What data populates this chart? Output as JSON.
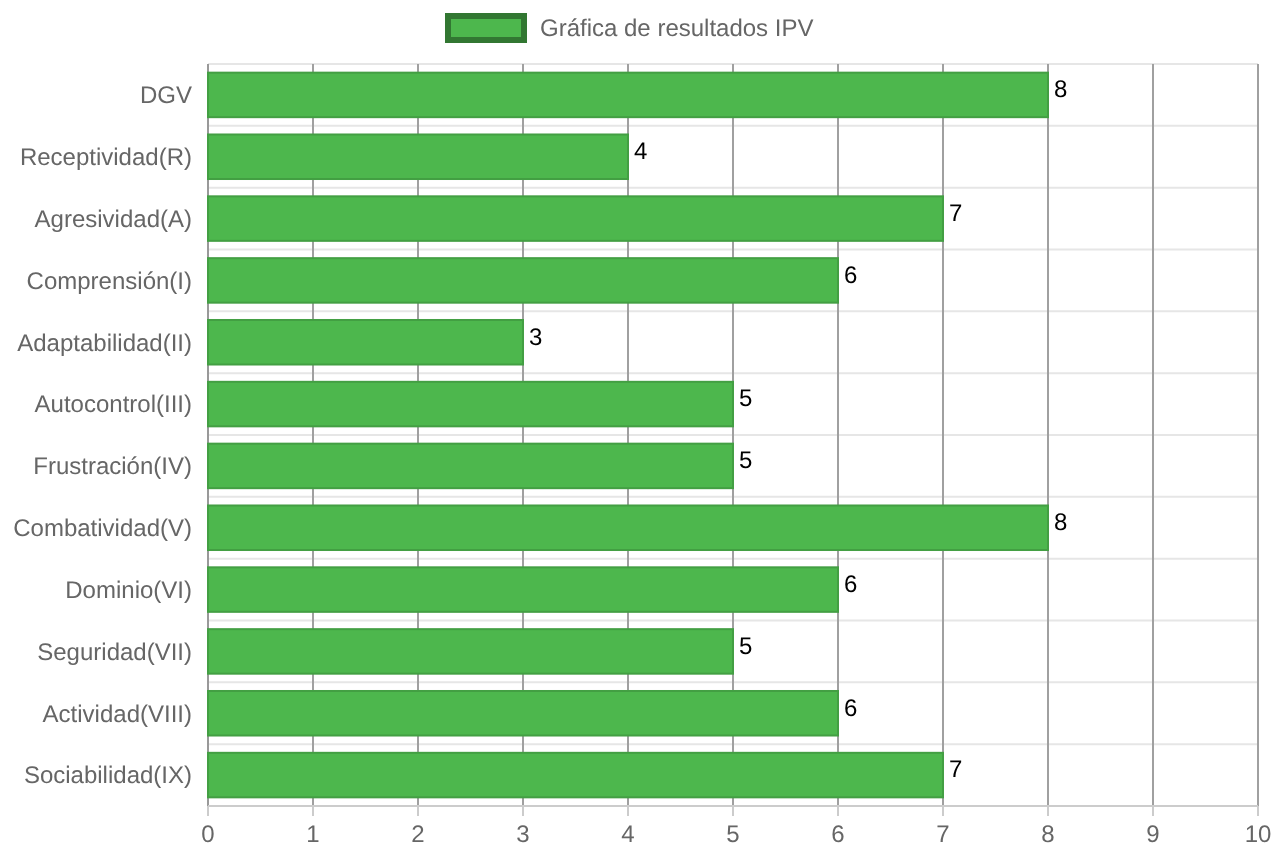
{
  "chart_data": {
    "type": "bar",
    "orientation": "horizontal",
    "categories": [
      "DGV",
      "Receptividad(R)",
      "Agresividad(A)",
      "Comprensión(I)",
      "Adaptabilidad(II)",
      "Autocontrol(III)",
      "Frustración(IV)",
      "Combatividad(V)",
      "Dominio(VI)",
      "Seguridad(VII)",
      "Actividad(VIII)",
      "Sociabilidad(IX)"
    ],
    "series": [
      {
        "name": "Gráfica de resultados IPV",
        "color": "#4db74d",
        "values": [
          8,
          4,
          7,
          6,
          3,
          5,
          5,
          8,
          6,
          5,
          6,
          7
        ]
      }
    ],
    "xlim": [
      0,
      10
    ],
    "xticks": [
      0,
      1,
      2,
      3,
      4,
      5,
      6,
      7,
      8,
      9,
      10
    ],
    "grid": true,
    "legend": "top",
    "data_labels": true
  }
}
